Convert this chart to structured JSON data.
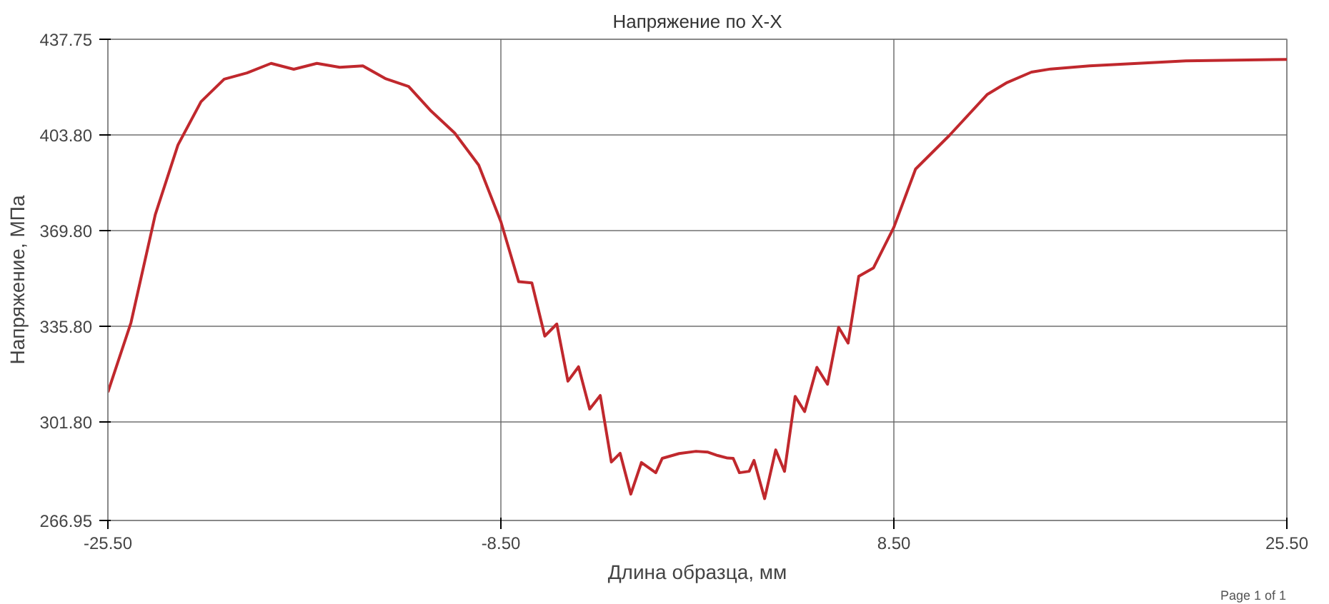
{
  "chart_data": {
    "type": "line",
    "title": "Напряжение по X-X",
    "xlabel": "Длина образца, мм",
    "ylabel": "Напряжение, МПа",
    "annotations": [
      "Page 1 of 1"
    ],
    "xlim": [
      -25.5,
      25.5
    ],
    "xticks": [
      {
        "value": -25.5,
        "label": "-25.50"
      },
      {
        "value": -8.5,
        "label": "-8.50"
      },
      {
        "value": 8.5,
        "label": "8.50"
      },
      {
        "value": 25.5,
        "label": "25.50"
      }
    ],
    "ylim": [
      266.95,
      437.75
    ],
    "yticks": [
      {
        "value": 266.95,
        "label": "266.95"
      },
      {
        "value": 301.8,
        "label": "301.80"
      },
      {
        "value": 335.8,
        "label": "335.80"
      },
      {
        "value": 369.8,
        "label": "369.80"
      },
      {
        "value": 403.8,
        "label": "403.80"
      },
      {
        "value": 437.75,
        "label": "437.75"
      }
    ],
    "grid": true,
    "marker": "none",
    "line_style": "solid",
    "series": [
      {
        "color": "#c0282d",
        "x": [
          -25.5,
          -24.5,
          -23.45,
          -22.47,
          -21.47,
          -20.47,
          -19.48,
          -18.44,
          -17.46,
          -16.46,
          -15.47,
          -14.47,
          -13.47,
          -12.49,
          -11.51,
          -10.5,
          -9.46,
          -8.5,
          -7.73,
          -7.16,
          -6.6,
          -6.08,
          -5.6,
          -5.14,
          -4.66,
          -4.2,
          -3.72,
          -3.34,
          -2.88,
          -2.42,
          -1.8,
          -1.52,
          -0.79,
          -0.06,
          0.46,
          0.88,
          1.3,
          1.55,
          1.82,
          2.24,
          2.45,
          2.91,
          3.39,
          3.77,
          4.23,
          4.64,
          5.17,
          5.63,
          6.11,
          6.52,
          6.98,
          7.62,
          8.5,
          9.44,
          10.9,
          12.53,
          13.4,
          14.45,
          15.28,
          16.96,
          19.05,
          21.13,
          25.5
        ],
        "values": [
          312.5,
          337.2,
          375.5,
          400.2,
          415.6,
          423.6,
          425.8,
          429.2,
          427.1,
          429.2,
          427.8,
          428.3,
          423.7,
          421.0,
          412.2,
          404.5,
          393.1,
          373.0,
          351.7,
          351.3,
          332.4,
          336.7,
          316.4,
          321.5,
          306.5,
          311.3,
          287.7,
          290.8,
          276.3,
          287.5,
          283.9,
          289.0,
          290.7,
          291.5,
          291.2,
          290.0,
          289.1,
          289.0,
          283.9,
          284.4,
          288.3,
          274.7,
          292.0,
          284.4,
          311.0,
          305.6,
          321.3,
          315.3,
          335.5,
          329.9,
          353.6,
          356.6,
          371.0,
          391.7,
          403.6,
          418.1,
          422.4,
          426.1,
          427.2,
          428.3,
          429.2,
          430.1,
          430.6
        ]
      }
    ]
  }
}
